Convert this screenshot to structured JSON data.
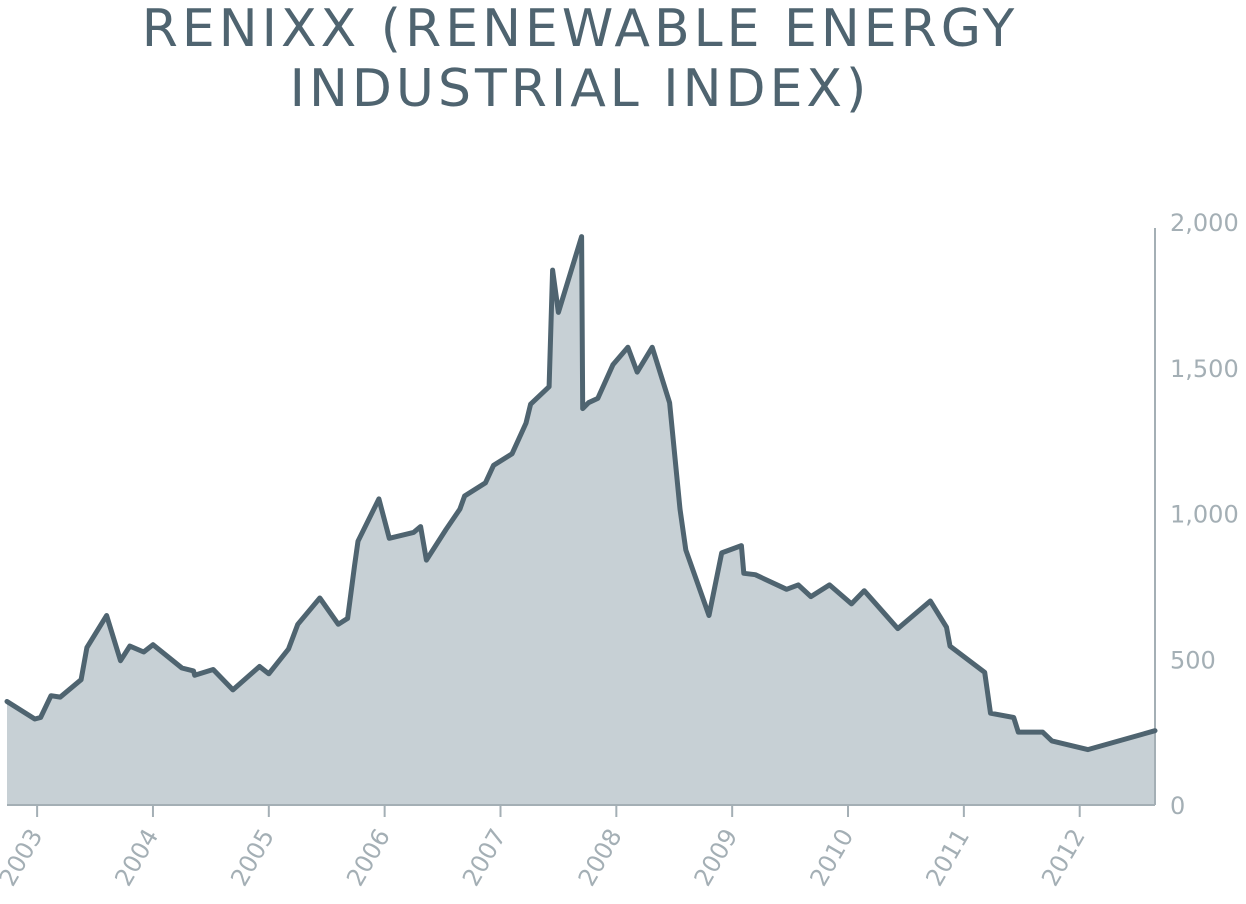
{
  "chart_data": {
    "type": "area",
    "title_lines": [
      "RENIXX (RENEWABLE ENERGY",
      "INDUSTRIAL INDEX)"
    ],
    "y_ticks": [
      "2,000",
      "1,500",
      "1,000",
      "500",
      "0"
    ],
    "y_tick_values": [
      2000,
      1500,
      1000,
      500,
      0
    ],
    "x_ticks": [
      "2003",
      "2004",
      "2005",
      "2006",
      "2007",
      "2008",
      "2009",
      "2010",
      "2011",
      "2012"
    ],
    "x_tick_values": [
      2003,
      2004,
      2005,
      2006,
      2007,
      2008,
      2009,
      2010,
      2011,
      2012
    ],
    "xlim": [
      2002.74,
      2012.65
    ],
    "ylim": [
      0,
      2000
    ],
    "grid": false,
    "y_axis_side": "right",
    "colors": {
      "line": "#4f6470",
      "fill": "#c7d0d5",
      "title": "#4f6470",
      "tick": "#a4afb5",
      "axis": "#a4afb5"
    },
    "series": [
      {
        "x": [
          2002.74,
          2002.98,
          2003.03,
          2003.12,
          2003.2,
          2003.38,
          2003.43,
          2003.6,
          2003.72,
          2003.8,
          2003.92,
          2004.0,
          2004.25,
          2004.35,
          2004.36,
          2004.52,
          2004.69,
          2004.92,
          2005.0,
          2005.17,
          2005.25,
          2005.44,
          2005.6,
          2005.68,
          2005.74,
          2005.77,
          2005.95,
          2006.04,
          2006.25,
          2006.31,
          2006.36,
          2006.53,
          2006.65,
          2006.69,
          2006.87,
          2006.94,
          2007.1,
          2007.22,
          2007.26,
          2007.42,
          2007.45,
          2007.5,
          2007.7,
          2007.71,
          2007.76,
          2007.84,
          2007.97,
          2008.1,
          2008.18,
          2008.31,
          2008.46,
          2008.55,
          2008.6,
          2008.8,
          2008.91,
          2009.08,
          2009.1,
          2009.2,
          2009.47,
          2009.57,
          2009.68,
          2009.84,
          2010.03,
          2010.14,
          2010.43,
          2010.71,
          2010.85,
          2010.88,
          2011.18,
          2011.23,
          2011.43,
          2011.47,
          2011.68,
          2011.76,
          2012.07,
          2012.65
        ],
        "y": [
          355,
          295,
          300,
          375,
          370,
          430,
          540,
          650,
          495,
          545,
          525,
          550,
          470,
          460,
          445,
          465,
          395,
          475,
          450,
          535,
          620,
          710,
          620,
          640,
          820,
          905,
          1050,
          915,
          935,
          955,
          840,
          945,
          1015,
          1060,
          1105,
          1165,
          1205,
          1310,
          1375,
          1435,
          1835,
          1690,
          1950,
          1360,
          1380,
          1395,
          1510,
          1570,
          1485,
          1570,
          1380,
          1015,
          875,
          650,
          865,
          890,
          795,
          790,
          740,
          755,
          715,
          755,
          690,
          735,
          605,
          700,
          610,
          545,
          455,
          315,
          300,
          250,
          250,
          220,
          190,
          255
        ]
      }
    ]
  }
}
